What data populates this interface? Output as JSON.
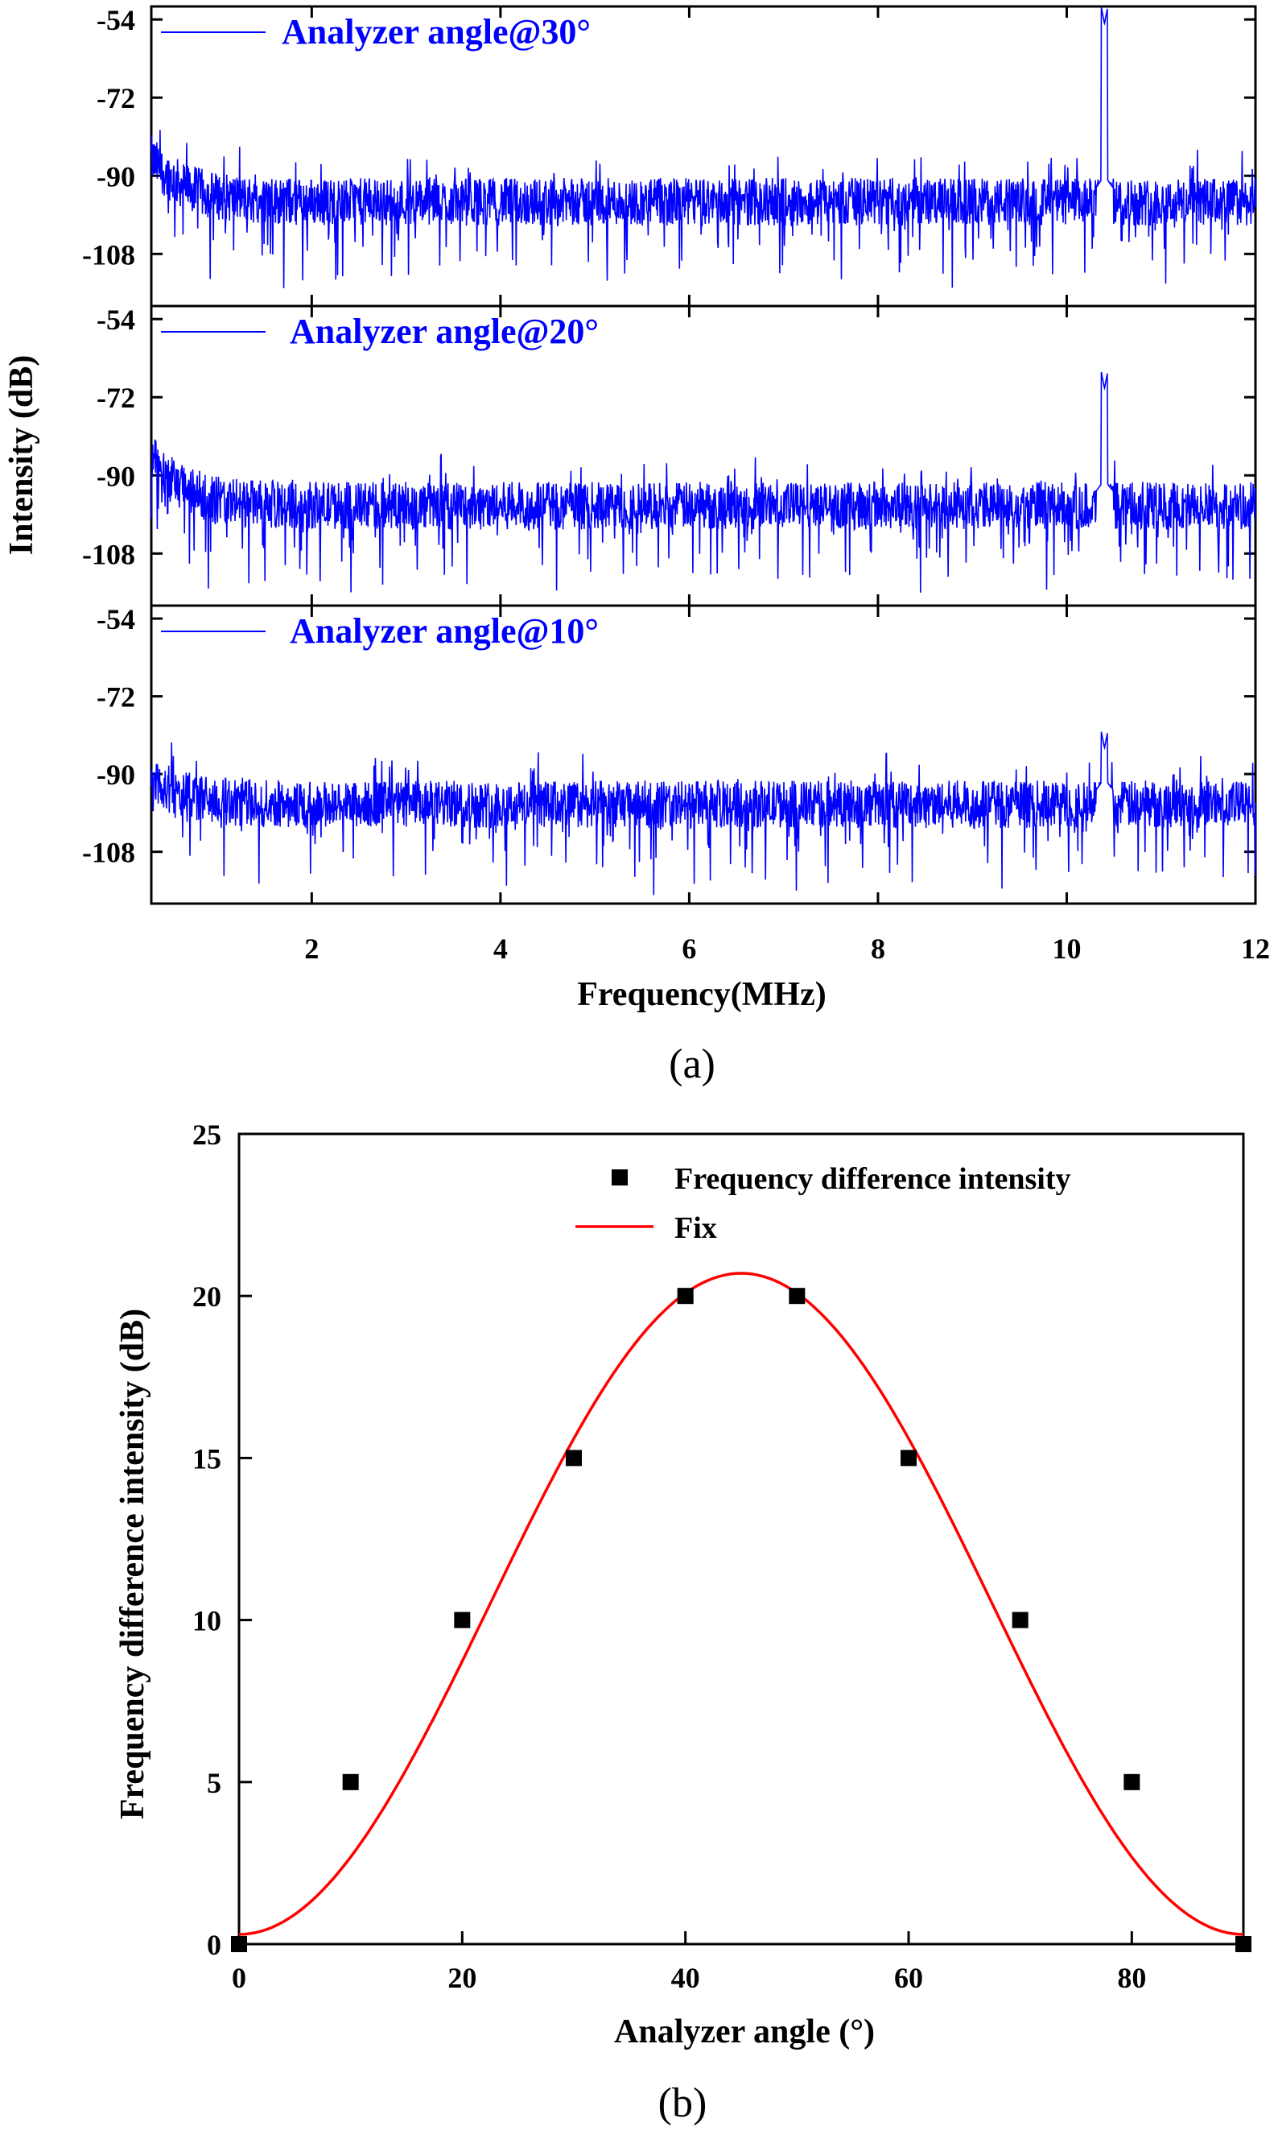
{
  "chart_data": [
    {
      "type": "line",
      "panel": "(a)",
      "xlabel": "Frequency(MHz)",
      "ylabel": "Intensity (dB)",
      "xlim": [
        0.3,
        12
      ],
      "ylim": [
        -120,
        -51
      ],
      "xticks": [
        "2",
        "4",
        "6",
        "8",
        "10",
        "12"
      ],
      "xtick_values": [
        2,
        4,
        6,
        8,
        10,
        12
      ],
      "yticks": [
        "-54",
        "-72",
        "-90",
        "-108"
      ],
      "ytick_values": [
        -54,
        -72,
        -90,
        -108
      ],
      "line_color": "#0000ff",
      "series": [
        {
          "name": "Analyzer angle@30°",
          "noise_floor_db": -96,
          "peak_freq_mhz": 10.4,
          "peak_db": -55,
          "low_freq_start_db": -86
        },
        {
          "name": "Analyzer angle@20°",
          "noise_floor_db": -97,
          "peak_freq_mhz": 10.4,
          "peak_db": -70,
          "low_freq_start_db": -86
        },
        {
          "name": "Analyzer angle@10°",
          "noise_floor_db": -97,
          "peak_freq_mhz": 10.4,
          "peak_db": -84,
          "low_freq_start_db": -91
        }
      ]
    },
    {
      "type": "scatter",
      "panel": "(b)",
      "xlabel": "Analyzer angle (°)",
      "ylabel": "Frequency difference intensity (dB)",
      "xlim": [
        0,
        90
      ],
      "ylim": [
        0,
        25
      ],
      "xticks": [
        "0",
        "20",
        "40",
        "60",
        "80"
      ],
      "xtick_values": [
        0,
        20,
        40,
        60,
        80
      ],
      "yticks": [
        "0",
        "5",
        "10",
        "15",
        "20",
        "25"
      ],
      "ytick_values": [
        0,
        5,
        10,
        15,
        20,
        25
      ],
      "legend_position": "top-right",
      "series": [
        {
          "name": "Frequency difference intensity",
          "marker": "square",
          "color": "#000000",
          "x": [
            0,
            10,
            20,
            30,
            40,
            50,
            60,
            70,
            80,
            90
          ],
          "y": [
            0,
            5,
            10,
            15,
            20,
            20,
            15,
            10,
            5,
            0
          ]
        },
        {
          "name": "Fix",
          "line": true,
          "color": "#ff0000",
          "function": "sin2",
          "amplitude": 20.4,
          "offset": 0.3
        }
      ]
    }
  ],
  "captions": [
    "(a)",
    "(b)"
  ]
}
